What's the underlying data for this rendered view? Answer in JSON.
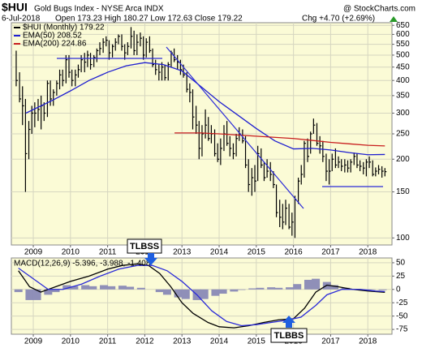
{
  "chart_data": [
    {
      "type": "ohlc",
      "title": "$HUI",
      "subtitle": "Gold Bugs Index - NYSE Arca INDX",
      "source": "@ StockCharts.com",
      "date": "6-Jul-2018",
      "stats": "Open 173.23 High 180.27 Low 172.63 Close 179.22",
      "change": "Chg +4.70 (+2.69%)",
      "annotation": "TLBSS",
      "log_scale": true,
      "grid": true,
      "legend": "upper left",
      "xlim": [
        2008.41,
        2018.65
      ],
      "xticks": [
        2009,
        2010,
        2011,
        2012,
        2013,
        2014,
        2015,
        2016,
        2017,
        2018
      ],
      "ylim": [
        94,
        665
      ],
      "yticks": [
        100,
        150,
        200,
        250,
        300,
        350,
        400,
        450,
        500,
        550,
        600,
        650
      ],
      "series": [
        {
          "name": "$HUI (Monthly) 179.22",
          "color": "#000000",
          "x": [
            2008.54,
            2008.63,
            2008.71,
            2008.79,
            2008.88,
            2008.96,
            2009.04,
            2009.13,
            2009.21,
            2009.29,
            2009.38,
            2009.46,
            2009.54,
            2009.63,
            2009.71,
            2009.79,
            2009.88,
            2009.96,
            2010.04,
            2010.13,
            2010.21,
            2010.29,
            2010.38,
            2010.46,
            2010.54,
            2010.63,
            2010.71,
            2010.79,
            2010.88,
            2010.96,
            2011.04,
            2011.13,
            2011.21,
            2011.29,
            2011.38,
            2011.46,
            2011.54,
            2011.63,
            2011.71,
            2011.79,
            2011.88,
            2011.96,
            2012.04,
            2012.13,
            2012.21,
            2012.29,
            2012.38,
            2012.46,
            2012.54,
            2012.63,
            2012.71,
            2012.79,
            2012.88,
            2012.96,
            2013.04,
            2013.13,
            2013.21,
            2013.29,
            2013.38,
            2013.46,
            2013.54,
            2013.63,
            2013.71,
            2013.79,
            2013.88,
            2013.96,
            2014.04,
            2014.13,
            2014.21,
            2014.29,
            2014.38,
            2014.46,
            2014.54,
            2014.63,
            2014.71,
            2014.79,
            2014.88,
            2014.96,
            2015.04,
            2015.13,
            2015.21,
            2015.29,
            2015.38,
            2015.46,
            2015.54,
            2015.63,
            2015.71,
            2015.79,
            2015.88,
            2015.96,
            2016.04,
            2016.13,
            2016.21,
            2016.29,
            2016.38,
            2016.46,
            2016.54,
            2016.63,
            2016.71,
            2016.79,
            2016.88,
            2016.96,
            2017.04,
            2017.13,
            2017.21,
            2017.29,
            2017.38,
            2017.46,
            2017.54,
            2017.63,
            2017.71,
            2017.79,
            2017.88,
            2017.96,
            2018.04,
            2018.13,
            2018.21,
            2018.29,
            2018.38,
            2018.46
          ],
          "high": [
            520,
            430,
            380,
            340,
            280,
            320,
            330,
            340,
            350,
            330,
            400,
            400,
            370,
            400,
            440,
            440,
            500,
            500,
            440,
            440,
            460,
            500,
            510,
            520,
            510,
            500,
            530,
            560,
            580,
            590,
            570,
            550,
            580,
            600,
            600,
            550,
            560,
            640,
            620,
            600,
            610,
            590,
            580,
            590,
            530,
            480,
            460,
            470,
            460,
            470,
            520,
            530,
            500,
            480,
            460,
            430,
            390,
            370,
            320,
            280,
            270,
            310,
            290,
            270,
            260,
            230,
            240,
            270,
            280,
            245,
            230,
            250,
            265,
            260,
            245,
            200,
            185,
            190,
            225,
            220,
            195,
            200,
            195,
            180,
            160,
            140,
            135,
            140,
            135,
            125,
            145,
            170,
            190,
            235,
            240,
            255,
            286,
            275,
            245,
            235,
            210,
            200,
            210,
            220,
            205,
            200,
            200,
            198,
            200,
            212,
            210,
            198,
            195,
            200,
            205,
            198,
            186,
            190,
            188,
            185
          ],
          "low": [
            380,
            330,
            270,
            150,
            200,
            250,
            265,
            280,
            260,
            280,
            290,
            320,
            320,
            350,
            370,
            380,
            390,
            410,
            380,
            380,
            410,
            430,
            430,
            450,
            440,
            450,
            470,
            500,
            510,
            540,
            480,
            490,
            520,
            550,
            520,
            480,
            500,
            530,
            500,
            500,
            540,
            480,
            490,
            510,
            450,
            420,
            400,
            400,
            400,
            400,
            450,
            470,
            440,
            420,
            410,
            360,
            330,
            260,
            250,
            200,
            205,
            240,
            235,
            230,
            205,
            195,
            190,
            215,
            225,
            205,
            200,
            205,
            235,
            230,
            185,
            150,
            145,
            150,
            165,
            185,
            165,
            170,
            165,
            155,
            120,
            110,
            108,
            112,
            108,
            102,
            100,
            135,
            160,
            170,
            195,
            210,
            250,
            225,
            210,
            195,
            165,
            160,
            180,
            185,
            185,
            180,
            178,
            178,
            178,
            190,
            185,
            180,
            175,
            172,
            185,
            172,
            172,
            175,
            170,
            172
          ],
          "close": [
            400,
            340,
            320,
            210,
            260,
            300,
            300,
            310,
            320,
            300,
            390,
            340,
            360,
            390,
            420,
            400,
            480,
            430,
            400,
            420,
            440,
            480,
            470,
            500,
            460,
            490,
            520,
            530,
            560,
            570,
            510,
            540,
            560,
            590,
            540,
            510,
            540,
            590,
            520,
            560,
            580,
            500,
            560,
            520,
            460,
            440,
            430,
            450,
            410,
            460,
            510,
            480,
            470,
            440,
            420,
            370,
            360,
            290,
            270,
            220,
            250,
            270,
            240,
            250,
            210,
            200,
            220,
            250,
            230,
            220,
            210,
            240,
            250,
            235,
            190,
            160,
            170,
            165,
            210,
            190,
            170,
            180,
            175,
            160,
            125,
            120,
            115,
            130,
            110,
            115,
            140,
            165,
            175,
            230,
            205,
            250,
            270,
            230,
            225,
            205,
            180,
            180,
            200,
            190,
            195,
            188,
            190,
            185,
            195,
            205,
            190,
            188,
            185,
            195,
            195,
            175,
            180,
            183,
            180,
            179.22
          ]
        },
        {
          "name": "EMA(50) 208.52",
          "color": "#1f1fd0",
          "x": [
            2008.8,
            2009.5,
            2010,
            2010.5,
            2011,
            2011.5,
            2012,
            2012.5,
            2013,
            2013.5,
            2014,
            2014.5,
            2015,
            2015.5,
            2016,
            2016.5,
            2017,
            2017.5,
            2018,
            2018.46
          ],
          "values": [
            300,
            335,
            365,
            400,
            430,
            455,
            468,
            460,
            435,
            380,
            332,
            295,
            262,
            235,
            219,
            220,
            217,
            212,
            208,
            208.52
          ]
        },
        {
          "name": "EMA(200) 224.86",
          "color": "#c81e1e",
          "x": [
            2012.8,
            2013.5,
            2014,
            2015,
            2016,
            2016.5,
            2017,
            2017.5,
            2018,
            2018.46
          ],
          "values": [
            252,
            252,
            250,
            245,
            240,
            236,
            232,
            229,
            226,
            224.86
          ]
        }
      ]
    },
    {
      "type": "macd",
      "title": "MACD(12,26,9) -5.396, -3.988, -1.408",
      "annotation": "TLBBS",
      "log_scale": false,
      "grid": true,
      "xlim": [
        2008.41,
        2018.65
      ],
      "xticks": [
        2009,
        2010,
        2011,
        2012,
        2013,
        2014,
        2015,
        2016,
        2017,
        2018
      ],
      "ylim": [
        -84,
        59
      ],
      "yticks": [
        50,
        25,
        0,
        -25,
        -50,
        -75
      ],
      "series": [
        {
          "kind": "histogram",
          "color": "#8f8fb8",
          "x": [
            2008.6,
            2008.9,
            2009.1,
            2009.4,
            2009.6,
            2009.9,
            2010.1,
            2010.4,
            2010.6,
            2010.9,
            2011.1,
            2011.4,
            2011.6,
            2011.9,
            2012.1,
            2012.4,
            2012.6,
            2012.9,
            2013.1,
            2013.4,
            2013.6,
            2013.9,
            2014.1,
            2014.4,
            2014.6,
            2014.9,
            2015.1,
            2015.4,
            2015.6,
            2015.9,
            2016.1,
            2016.4,
            2016.6,
            2016.9,
            2017.1,
            2017.4,
            2017.6,
            2017.9,
            2018.1,
            2018.4
          ],
          "values": [
            -5,
            -20,
            -20,
            -10,
            -5,
            8,
            6,
            8,
            6,
            8,
            6,
            7,
            5,
            3,
            0,
            -5,
            -10,
            -15,
            -18,
            -20,
            -18,
            -12,
            -8,
            -4,
            -1,
            2,
            3,
            4,
            3,
            4,
            10,
            18,
            20,
            14,
            8,
            3,
            1,
            -1,
            -1,
            -1.408
          ]
        },
        {
          "kind": "line",
          "color": "#000000",
          "x": [
            2008.6,
            2008.9,
            2009.2,
            2009.6,
            2010,
            2010.5,
            2011,
            2011.4,
            2011.8,
            2012.1,
            2012.4,
            2012.7,
            2013,
            2013.3,
            2013.7,
            2014,
            2014.4,
            2014.8,
            2015.2,
            2015.6,
            2016,
            2016.3,
            2016.6,
            2016.9,
            2017.2,
            2017.6,
            2018,
            2018.46
          ],
          "values": [
            35,
            5,
            -5,
            5,
            15,
            25,
            38,
            45,
            48,
            45,
            30,
            5,
            -25,
            -45,
            -62,
            -70,
            -72,
            -68,
            -62,
            -57,
            -55,
            -35,
            -5,
            8,
            5,
            0,
            -3,
            -5.396
          ]
        },
        {
          "kind": "line",
          "color": "#2a2ad8",
          "x": [
            2008.6,
            2009,
            2009.4,
            2009.8,
            2010.3,
            2010.8,
            2011.3,
            2011.8,
            2012.2,
            2012.6,
            2013,
            2013.4,
            2013.8,
            2014.2,
            2014.6,
            2015,
            2015.4,
            2015.8,
            2016.2,
            2016.6,
            2016.9,
            2017.3,
            2017.8,
            2018.2,
            2018.46
          ],
          "values": [
            40,
            20,
            0,
            0,
            10,
            25,
            38,
            45,
            45,
            35,
            15,
            -10,
            -40,
            -60,
            -68,
            -66,
            -62,
            -58,
            -52,
            -30,
            -10,
            0,
            0,
            -3,
            -3.988
          ]
        }
      ]
    }
  ]
}
